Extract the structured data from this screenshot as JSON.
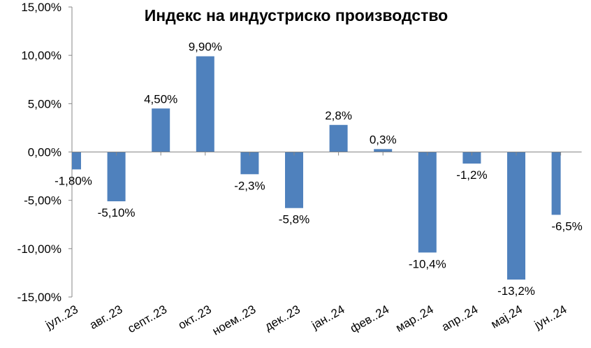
{
  "chart_data": {
    "type": "bar",
    "title": "Индекс на индустриско производство",
    "xlabel": "",
    "ylabel": "",
    "ylim": [
      -15,
      15
    ],
    "yticks": [
      15,
      10,
      5,
      0,
      -5,
      -10,
      -15
    ],
    "ytick_labels": [
      "15,00%",
      "10,00%",
      "5,00%",
      "0,00%",
      "-5,00%",
      "-10,00%",
      "-15,00%"
    ],
    "categories": [
      "јул..23",
      "авг..23",
      "септ..23",
      "окт..23",
      "ноем..23",
      "дек..23",
      "јан..24",
      "фев..24",
      "мар..24",
      "апр..24",
      "мај.24",
      "јун..24"
    ],
    "values": [
      -1.8,
      -5.1,
      4.5,
      9.9,
      -2.3,
      -5.8,
      2.8,
      0.3,
      -10.4,
      -1.2,
      -13.2,
      -6.5
    ],
    "data_labels": [
      "-1,80%",
      "-5,10%",
      "4,50%",
      "9,90%",
      "-2,3%",
      "-5,8%",
      "2,8%",
      "0,3%",
      "-10,4%",
      "-1,2%",
      "-13,2%",
      "-6,5%"
    ],
    "grid": false,
    "legend": "none",
    "bar_color": "#4F81BD"
  }
}
